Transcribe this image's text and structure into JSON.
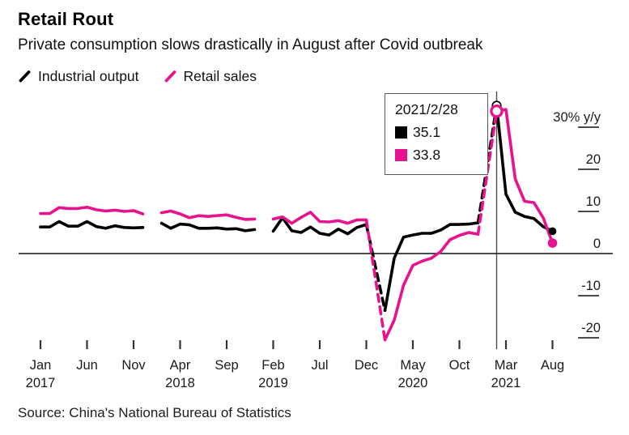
{
  "header": {
    "title": "Retail Rout",
    "subtitle": "Private consumption slows drastically in August after Covid outbreak"
  },
  "legend": {
    "items": [
      {
        "label": "Industrial output",
        "color": "#000000"
      },
      {
        "label": "Retail sales",
        "color": "#E7128D"
      }
    ]
  },
  "tooltip": {
    "date": "2021/2/28",
    "rows": [
      {
        "series": "Industrial output",
        "color": "#000000",
        "value": "35.1"
      },
      {
        "series": "Retail sales",
        "color": "#E7128D",
        "value": "33.8"
      }
    ]
  },
  "source": "Source: China's National Bureau of Statistics",
  "chart_data": {
    "type": "line",
    "title": "Retail Rout",
    "subtitle": "Private consumption slows drastically in August after Covid outbreak",
    "unit_top_label": "30% y/y",
    "ylabel": "% y/y",
    "ylim": [
      -25,
      37
    ],
    "yticks": [
      30,
      20,
      10,
      0,
      -10,
      -20
    ],
    "grid": false,
    "legend_position": "top-left",
    "x_unit": "month index, Jan 2017 = 0",
    "xticks": [
      {
        "m": 0,
        "month": "Jan",
        "year": "2017"
      },
      {
        "m": 5,
        "month": "Jun"
      },
      {
        "m": 10,
        "month": "Nov"
      },
      {
        "m": 15,
        "month": "Apr",
        "year": "2018"
      },
      {
        "m": 20,
        "month": "Sep"
      },
      {
        "m": 25,
        "month": "Feb",
        "year": "2019"
      },
      {
        "m": 30,
        "month": "Jul"
      },
      {
        "m": 35,
        "month": "Dec"
      },
      {
        "m": 40,
        "month": "May",
        "year": "2020"
      },
      {
        "m": 45,
        "month": "Oct"
      },
      {
        "m": 50,
        "month": "Mar",
        "year": "2021"
      },
      {
        "m": 55,
        "month": "Aug"
      }
    ],
    "crosshair": {
      "m": 49,
      "date": "2021/2/28"
    },
    "axis_colors": {
      "line": "#333333",
      "text": "#1a1a1a",
      "crosshair": "#4d4d4d"
    },
    "series": [
      {
        "name": "Industrial output",
        "color": "#000000",
        "segments": [
          {
            "style": "solid",
            "points": [
              [
                0,
                6.3
              ],
              [
                1,
                6.3
              ],
              [
                2,
                7.6
              ],
              [
                3,
                6.5
              ],
              [
                4,
                6.5
              ],
              [
                5,
                7.6
              ],
              [
                6,
                6.4
              ],
              [
                7,
                6.0
              ],
              [
                8,
                6.6
              ],
              [
                9,
                6.2
              ],
              [
                10,
                6.1
              ],
              [
                11,
                6.2
              ]
            ]
          },
          {
            "style": "solid",
            "points": [
              [
                13,
                7.2
              ],
              [
                14,
                6.0
              ],
              [
                15,
                7.0
              ],
              [
                16,
                6.8
              ],
              [
                17,
                6.0
              ],
              [
                18,
                6.0
              ],
              [
                19,
                6.1
              ],
              [
                20,
                5.8
              ],
              [
                21,
                5.9
              ],
              [
                22,
                5.4
              ],
              [
                23,
                5.7
              ]
            ]
          },
          {
            "style": "solid",
            "points": [
              [
                25,
                5.3
              ],
              [
                26,
                8.5
              ],
              [
                27,
                5.4
              ],
              [
                28,
                5.0
              ],
              [
                29,
                6.3
              ],
              [
                30,
                4.8
              ],
              [
                31,
                4.4
              ],
              [
                32,
                5.8
              ],
              [
                33,
                4.7
              ],
              [
                34,
                6.2
              ],
              [
                35,
                6.9
              ]
            ]
          },
          {
            "style": "dashed",
            "points": [
              [
                35,
                6.9
              ],
              [
                37,
                -13.5
              ]
            ]
          },
          {
            "style": "solid",
            "points": [
              [
                37,
                -13.5
              ],
              [
                38,
                -1.1
              ],
              [
                39,
                3.9
              ],
              [
                40,
                4.4
              ],
              [
                41,
                4.8
              ],
              [
                42,
                4.8
              ],
              [
                43,
                5.6
              ],
              [
                44,
                6.9
              ],
              [
                45,
                6.9
              ],
              [
                46,
                7.0
              ],
              [
                47,
                7.3
              ]
            ]
          },
          {
            "style": "dashed",
            "points": [
              [
                47,
                7.3
              ],
              [
                49,
                35.1
              ]
            ]
          },
          {
            "style": "solid",
            "points": [
              [
                49,
                35.1
              ],
              [
                50,
                14.1
              ],
              [
                51,
                9.8
              ],
              [
                52,
                8.8
              ],
              [
                53,
                8.3
              ],
              [
                54,
                6.4
              ],
              [
                55,
                5.3
              ]
            ]
          }
        ],
        "peak_marker": {
          "m": 49,
          "value": 35.1
        },
        "end_marker": {
          "m": 55,
          "value": 5.3
        }
      },
      {
        "name": "Retail sales",
        "color": "#E7128D",
        "segments": [
          {
            "style": "solid",
            "points": [
              [
                0,
                9.5
              ],
              [
                1,
                9.5
              ],
              [
                2,
                10.9
              ],
              [
                3,
                10.7
              ],
              [
                4,
                10.7
              ],
              [
                5,
                11.0
              ],
              [
                6,
                10.4
              ],
              [
                7,
                10.1
              ],
              [
                8,
                10.3
              ],
              [
                9,
                10.0
              ],
              [
                10,
                10.2
              ],
              [
                11,
                9.4
              ]
            ]
          },
          {
            "style": "solid",
            "points": [
              [
                13,
                9.7
              ],
              [
                14,
                10.1
              ],
              [
                15,
                9.4
              ],
              [
                16,
                8.5
              ],
              [
                17,
                9.0
              ],
              [
                18,
                8.8
              ],
              [
                19,
                9.0
              ],
              [
                20,
                9.2
              ],
              [
                21,
                8.6
              ],
              [
                22,
                8.1
              ],
              [
                23,
                8.2
              ]
            ]
          },
          {
            "style": "solid",
            "points": [
              [
                25,
                8.2
              ],
              [
                26,
                8.7
              ],
              [
                27,
                7.2
              ],
              [
                28,
                8.6
              ],
              [
                29,
                9.8
              ],
              [
                30,
                7.6
              ],
              [
                31,
                7.5
              ],
              [
                32,
                7.8
              ],
              [
                33,
                7.2
              ],
              [
                34,
                8.0
              ],
              [
                35,
                8.0
              ]
            ]
          },
          {
            "style": "dashed",
            "points": [
              [
                35,
                8.0
              ],
              [
                37,
                -20.5
              ]
            ]
          },
          {
            "style": "solid",
            "points": [
              [
                37,
                -20.5
              ],
              [
                38,
                -15.8
              ],
              [
                39,
                -7.5
              ],
              [
                40,
                -2.8
              ],
              [
                41,
                -1.8
              ],
              [
                42,
                -1.1
              ],
              [
                43,
                0.5
              ],
              [
                44,
                3.3
              ],
              [
                45,
                4.3
              ],
              [
                46,
                5.0
              ],
              [
                47,
                4.6
              ]
            ]
          },
          {
            "style": "dashed",
            "points": [
              [
                47,
                4.6
              ],
              [
                49,
                33.8
              ]
            ]
          },
          {
            "style": "solid",
            "points": [
              [
                49,
                33.8
              ],
              [
                50,
                34.2
              ],
              [
                51,
                17.7
              ],
              [
                52,
                12.4
              ],
              [
                53,
                12.1
              ],
              [
                54,
                8.5
              ],
              [
                55,
                2.5
              ]
            ]
          }
        ],
        "peak_marker": {
          "m": 49,
          "value": 33.8
        },
        "end_marker": {
          "m": 55,
          "value": 2.5
        }
      }
    ]
  }
}
